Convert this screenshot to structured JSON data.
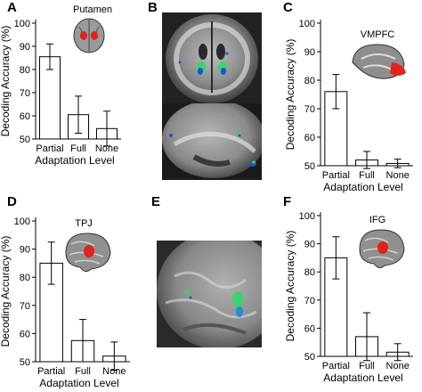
{
  "panels": {
    "A": {
      "letter": "A"
    },
    "B": {
      "letter": "B"
    },
    "C": {
      "letter": "C"
    },
    "D": {
      "letter": "D"
    },
    "E": {
      "letter": "E"
    },
    "F": {
      "letter": "F"
    }
  },
  "colors": {
    "bar_fill": "#ffffff",
    "bar_stroke": "#000000",
    "roi_red": "#e0231b",
    "activation_green": "#39d46a",
    "activation_blue": "#1f4fd8"
  },
  "chart_data": [
    {
      "id": "A",
      "type": "bar",
      "title": "Putamen",
      "xlabel": "Adaptation Level",
      "ylabel": "Decoding Accuracy (%)",
      "categories": [
        "Partial",
        "Full",
        "None"
      ],
      "values": [
        85.5,
        60.5,
        54.5
      ],
      "errors": [
        5.5,
        8.0,
        7.5
      ],
      "ylim": [
        50,
        100
      ],
      "yticks": [
        50,
        60,
        70,
        80,
        90,
        100
      ]
    },
    {
      "id": "C",
      "type": "bar",
      "title": "VMPFC",
      "xlabel": "Adaptation Level",
      "ylabel": "Decoding Accuracy (%)",
      "categories": [
        "Partial",
        "Full",
        "None"
      ],
      "values": [
        76.0,
        52.0,
        50.8
      ],
      "errors": [
        6.0,
        3.0,
        1.5
      ],
      "ylim": [
        50,
        100
      ],
      "yticks": [
        50,
        60,
        70,
        80,
        90,
        100
      ]
    },
    {
      "id": "D",
      "type": "bar",
      "title": "TPJ",
      "xlabel": "Adaptation Level",
      "ylabel": "Decoding Accuracy (%)",
      "categories": [
        "Partial",
        "Full",
        "None"
      ],
      "values": [
        85.0,
        57.5,
        52.0
      ],
      "errors": [
        7.5,
        7.5,
        5.0
      ],
      "ylim": [
        50,
        100
      ],
      "yticks": [
        50,
        60,
        70,
        80,
        90,
        100
      ]
    },
    {
      "id": "F",
      "type": "bar",
      "title": "IFG",
      "xlabel": "Adaptation Level",
      "ylabel": "Decoding Accuracy (%)",
      "categories": [
        "Partial",
        "Full",
        "None"
      ],
      "values": [
        85.0,
        57.0,
        51.5
      ],
      "errors": [
        7.5,
        8.5,
        3.0
      ],
      "ylim": [
        50,
        100
      ],
      "yticks": [
        50,
        60,
        70,
        80,
        90,
        100
      ]
    }
  ]
}
